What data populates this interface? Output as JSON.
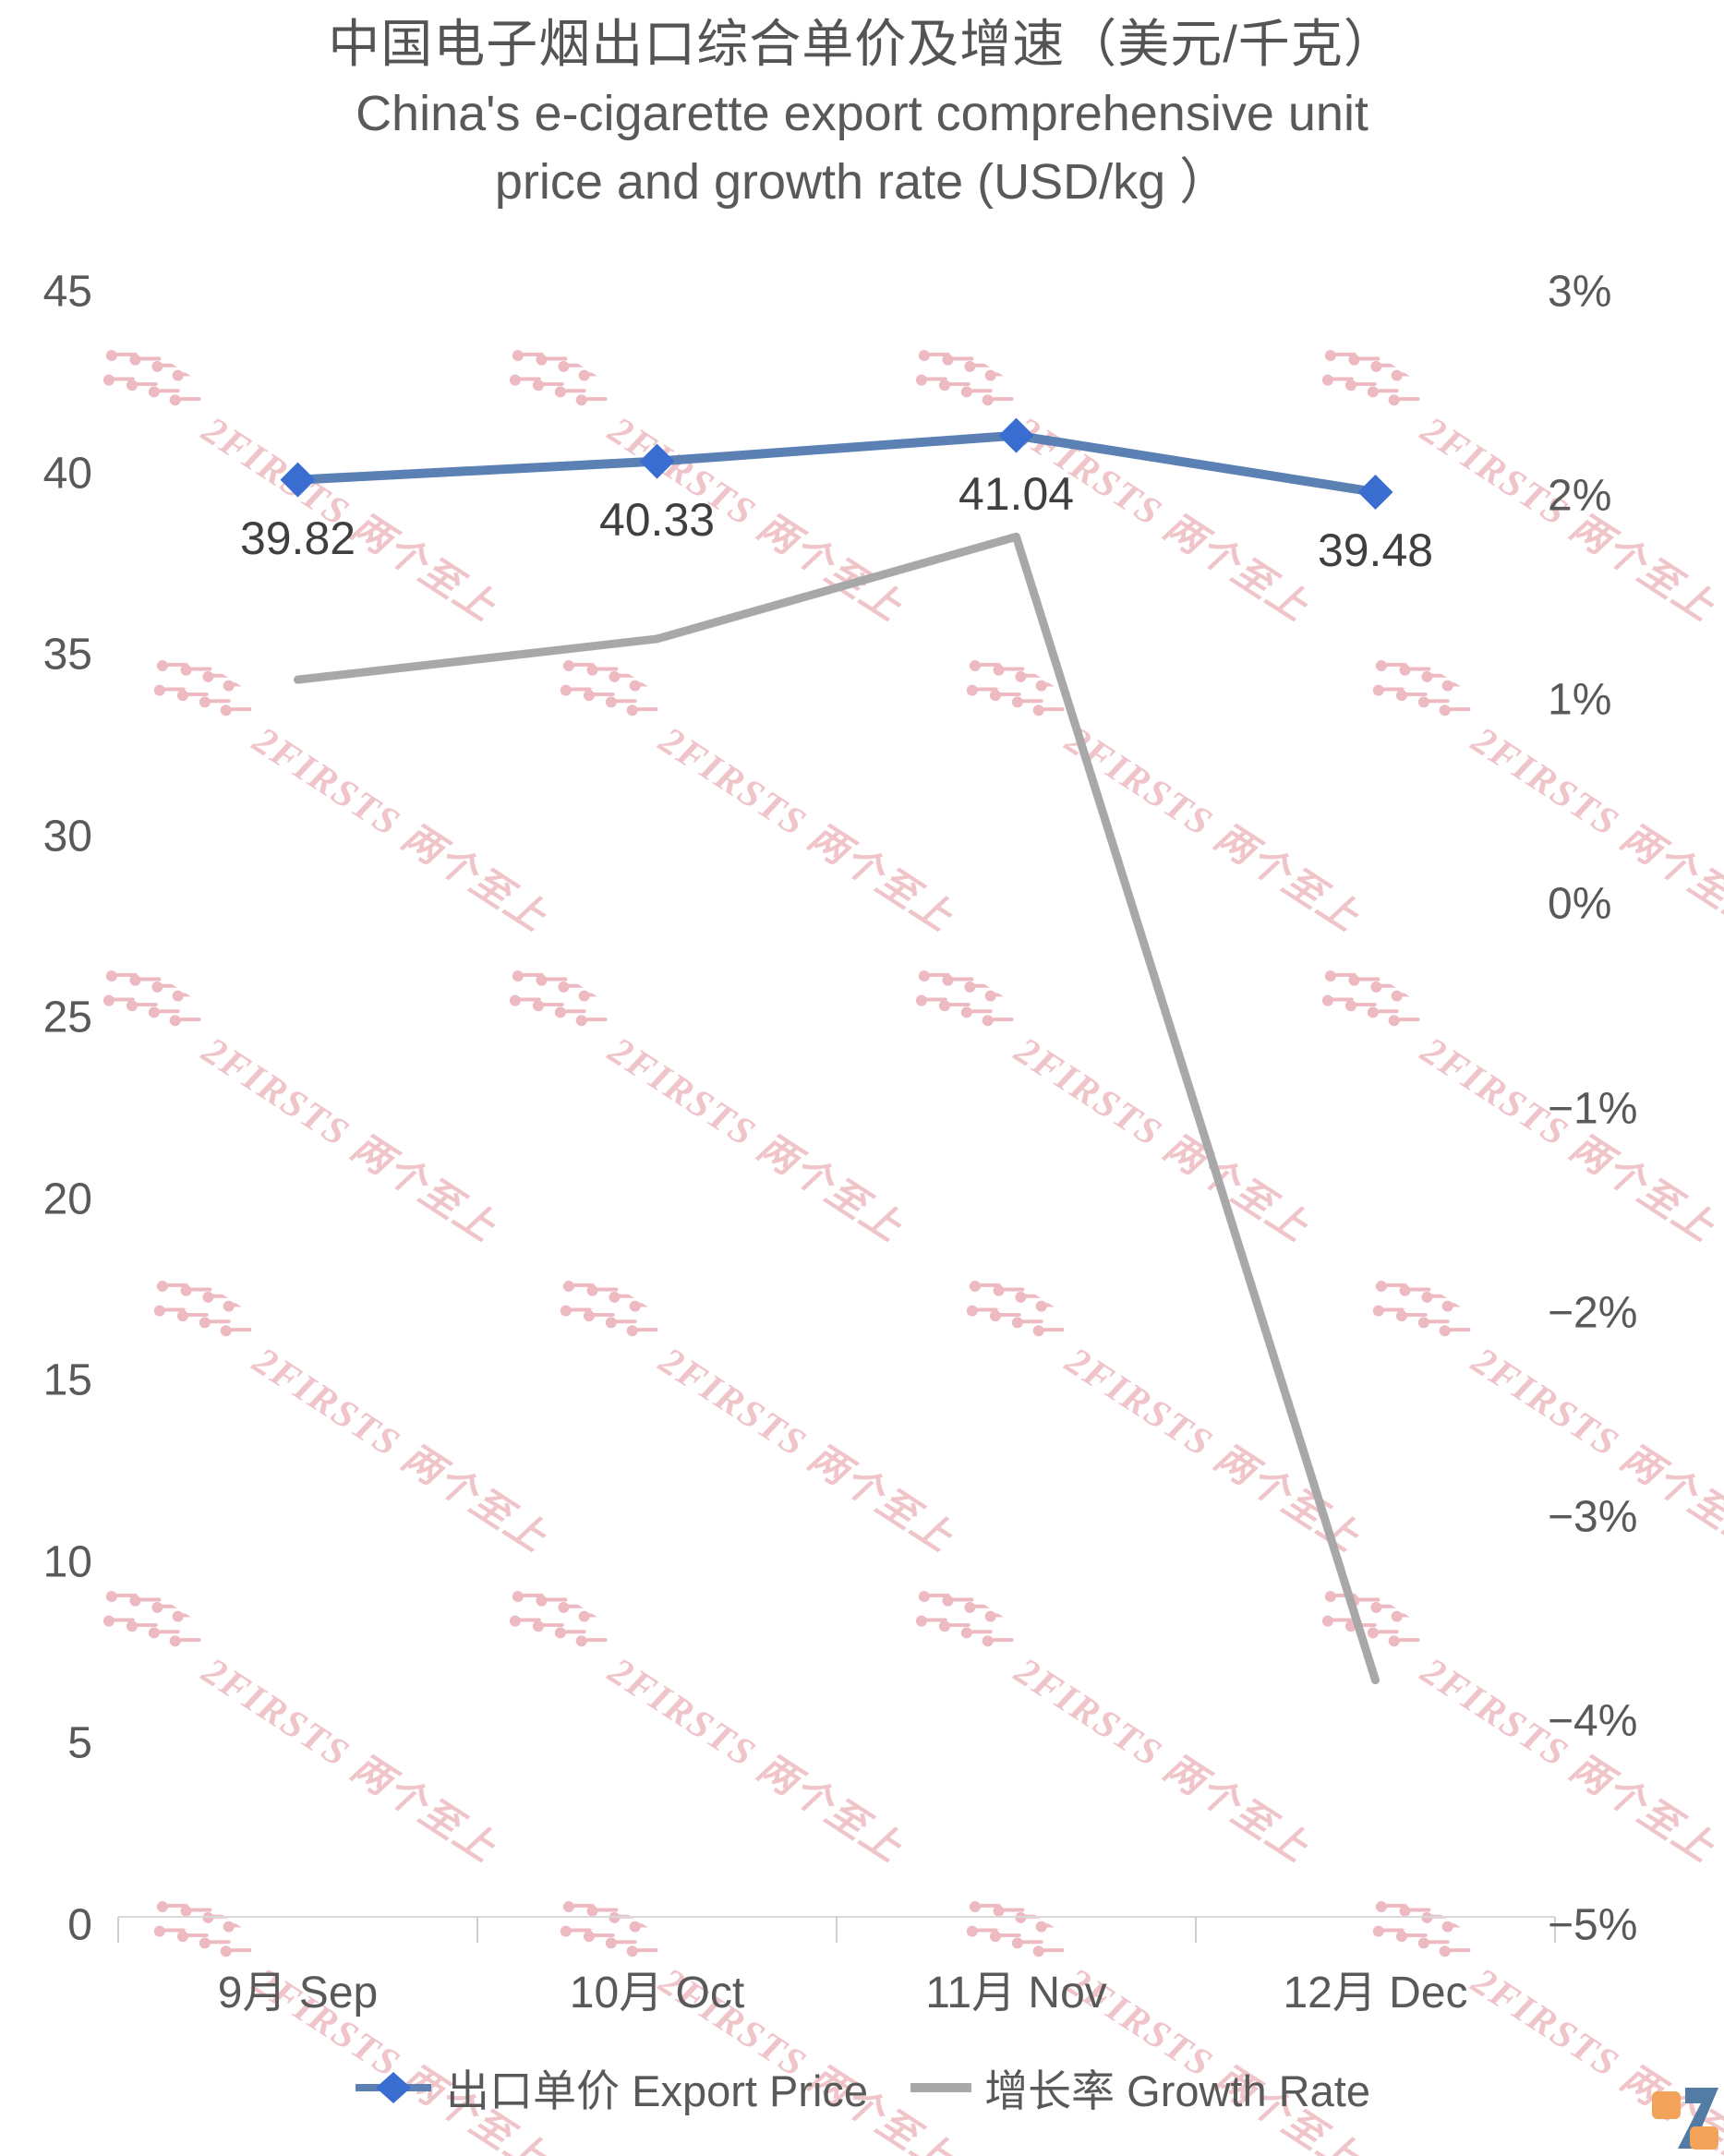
{
  "title": {
    "cn": "中国电子烟出口综合单价及增速（美元/千克）",
    "en1": "China's e-cigarette export comprehensive unit",
    "en2": "price and growth rate (USD/kg ）"
  },
  "chart_data": {
    "type": "line",
    "categories": [
      "9月 Sep",
      "10月 Oct",
      "11月 Nov",
      "12月 Dec"
    ],
    "series": [
      {
        "name": "出口单价 Export Price",
        "axis": "left",
        "values": [
          39.82,
          40.33,
          41.04,
          39.48
        ],
        "labels": [
          "39.82",
          "40.33",
          "41.04",
          "39.48"
        ],
        "line_color": "#5b80b4",
        "marker_color": "#3a6dd0",
        "marker": "diamond"
      },
      {
        "name": "增长率 Growth Rate",
        "axis": "right",
        "values": [
          1.1,
          1.3,
          1.8,
          -3.8
        ],
        "line_color": "#a8a8a8",
        "marker": "none"
      }
    ],
    "left_axis": {
      "range": [
        0,
        45
      ],
      "tick_values": [
        45,
        40,
        35,
        30,
        25,
        20,
        15,
        10,
        5,
        0
      ],
      "tick_labels": [
        "45",
        "40",
        "35",
        "30",
        "25",
        "20",
        "15",
        "10",
        "5",
        "0"
      ]
    },
    "right_axis": {
      "range": [
        -5,
        3
      ],
      "tick_values": [
        3,
        2,
        1,
        0,
        -1,
        -2,
        -3,
        -4,
        -5
      ],
      "tick_labels": [
        "3%",
        "2%",
        "1%",
        "0%",
        "−1%",
        "−2%",
        "−3%",
        "−4%",
        "−5%"
      ]
    },
    "grid": false,
    "legend_position": "bottom",
    "axis_line_color": "#d9d9d9",
    "tick_mark_color": "#d0d0d0"
  },
  "watermark": {
    "text": "2FIRSTS 两个至上",
    "text_color": "#f0c5ca",
    "icon_color": "#eebac1",
    "icon_name": "dandelion-pins-icon"
  },
  "logo": {
    "name": "2FIRSTS logo",
    "orange": "#F2A259",
    "blue": "#537CA5"
  }
}
